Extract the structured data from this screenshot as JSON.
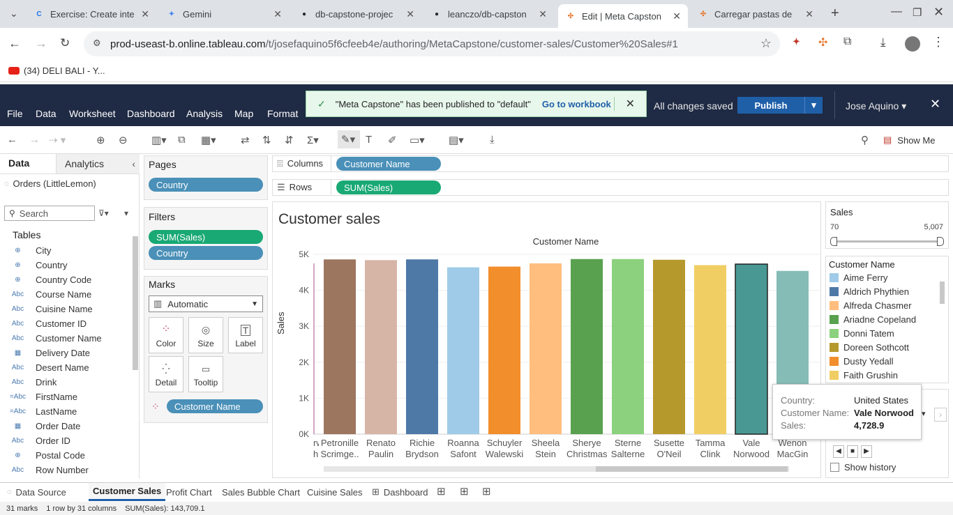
{
  "browser": {
    "tabs": [
      {
        "label": "Exercise: Create inte",
        "icon": "coursera-icon",
        "color": "#1a73e8",
        "glyph": "C"
      },
      {
        "label": "Gemini",
        "icon": "gemini-icon",
        "color": "#4285f4",
        "glyph": "✦"
      },
      {
        "label": "db-capstone-projec",
        "icon": "github-icon",
        "color": "#24292f",
        "glyph": "●"
      },
      {
        "label": "leanczo/db-capston",
        "icon": "github-icon",
        "color": "#24292f",
        "glyph": "●"
      },
      {
        "label": "Edit | Meta Capston",
        "icon": "tableau-icon",
        "color": "#e8762d",
        "glyph": "✣"
      },
      {
        "label": "Carregar pastas de",
        "icon": "tableau-icon",
        "color": "#e8762d",
        "glyph": "✣"
      }
    ],
    "url_host": "prod-useast-b.online.tableau.com",
    "url_path": "/t/josefaquino5f6cfeeb4e/authoring/MetaCapstone/customer-sales/Customer%20Sales#1",
    "bookmark": "(34) DELI BALI - Y..."
  },
  "tableau": {
    "menu": [
      "File",
      "Data",
      "Worksheet",
      "Dashboard",
      "Analysis",
      "Map",
      "Format"
    ],
    "toast": {
      "message": "\"Meta Capstone\" has been published to \"default\"",
      "link": "Go to workbook"
    },
    "saved": "All changes saved",
    "publish": "Publish",
    "user": "Jose Aquino",
    "show_me": "Show Me"
  },
  "datapane": {
    "tab_data": "Data",
    "tab_analytics": "Analytics",
    "source": "Orders (LittleLemon)",
    "search_placeholder": "Search",
    "tables_label": "Tables",
    "fields": [
      {
        "name": "City",
        "type": "⊕"
      },
      {
        "name": "Country",
        "type": "⊕"
      },
      {
        "name": "Country Code",
        "type": "⊕"
      },
      {
        "name": "Course Name",
        "type": "Abc"
      },
      {
        "name": "Cuisine Name",
        "type": "Abc"
      },
      {
        "name": "Customer ID",
        "type": "Abc"
      },
      {
        "name": "Customer Name",
        "type": "Abc"
      },
      {
        "name": "Delivery Date",
        "type": "▦"
      },
      {
        "name": "Desert Name",
        "type": "Abc"
      },
      {
        "name": "Drink",
        "type": "Abc"
      },
      {
        "name": "FirstName",
        "type": "=Abc"
      },
      {
        "name": "LastName",
        "type": "=Abc"
      },
      {
        "name": "Order Date",
        "type": "▦"
      },
      {
        "name": "Order ID",
        "type": "Abc"
      },
      {
        "name": "Postal Code",
        "type": "⊕"
      },
      {
        "name": "Row Number",
        "type": "Abc"
      }
    ]
  },
  "cards": {
    "pages_title": "Pages",
    "pages_pill": "Country",
    "filters_title": "Filters",
    "filters": [
      "SUM(Sales)",
      "Country"
    ],
    "marks_title": "Marks",
    "marks_type": "Automatic",
    "mark_buttons": [
      "Color",
      "Size",
      "Label",
      "Detail",
      "Tooltip"
    ],
    "marks_pill": "Customer Name"
  },
  "shelves": {
    "columns_label": "Columns",
    "columns_pill": "Customer Name",
    "rows_label": "Rows",
    "rows_pill": "SUM(Sales)"
  },
  "viz": {
    "title": "Customer sales",
    "x_header": "Customer Name",
    "y_label": "Sales",
    "tooltip": {
      "country_label": "Country:",
      "country": "United States",
      "name_label": "Customer Name:",
      "name": "Vale Norwood",
      "sales_label": "Sales:",
      "sales": "4,728.9"
    }
  },
  "chart_data": {
    "type": "bar",
    "title": "Customer sales",
    "xlabel": "Customer Name",
    "ylabel": "Sales",
    "ylim": [
      0,
      5000
    ],
    "yticks": [
      "0K",
      "1K",
      "2K",
      "3K",
      "4K",
      "5K"
    ],
    "categories": [
      {
        "label1": "rwin",
        "label2": "hno",
        "value": 4750,
        "color": "#d4a6c8"
      },
      {
        "label1": "Petronille",
        "label2": "Scrimge..",
        "value": 4860,
        "color": "#9d7660"
      },
      {
        "label1": "Renato",
        "label2": "Paulin",
        "value": 4840,
        "color": "#d7b5a6"
      },
      {
        "label1": "Richie",
        "label2": "Brydson",
        "value": 4860,
        "color": "#4e79a7"
      },
      {
        "label1": "Roanna",
        "label2": "Safont",
        "value": 4640,
        "color": "#a0cbe8"
      },
      {
        "label1": "Schuyler",
        "label2": "Walewski",
        "value": 4660,
        "color": "#f28e2b"
      },
      {
        "label1": "Sheela",
        "label2": "Stein",
        "value": 4750,
        "color": "#ffbe7d"
      },
      {
        "label1": "Sherye",
        "label2": "Christmas",
        "value": 4870,
        "color": "#59a14f"
      },
      {
        "label1": "Sterne",
        "label2": "Salterne",
        "value": 4870,
        "color": "#8cd17d"
      },
      {
        "label1": "Susette",
        "label2": "O'Neil",
        "value": 4850,
        "color": "#b6992d"
      },
      {
        "label1": "Tamma",
        "label2": "Clink",
        "value": 4700,
        "color": "#f1ce63"
      },
      {
        "label1": "Vale",
        "label2": "Norwood",
        "value": 4728.9,
        "color": "#499894"
      },
      {
        "label1": "Wenon",
        "label2": "MacGin",
        "value": 4540,
        "color": "#86bcb6"
      }
    ]
  },
  "filter_card": {
    "title": "Sales",
    "min": "70",
    "max": "5,007"
  },
  "legend": {
    "title": "Customer Name",
    "items": [
      {
        "name": "Aime Ferry",
        "color": "#a0cbe8"
      },
      {
        "name": "Aldrich Phythien",
        "color": "#4e79a7"
      },
      {
        "name": "Alfreda Chasmer",
        "color": "#ffbe7d"
      },
      {
        "name": "Ariadne Copeland",
        "color": "#59a14f"
      },
      {
        "name": "Donni Tatem",
        "color": "#8cd17d"
      },
      {
        "name": "Doreen Sothcott",
        "color": "#b6992d"
      },
      {
        "name": "Dusty Yedall",
        "color": "#f28e2b"
      },
      {
        "name": "Faith Grushin",
        "color": "#f1ce63"
      }
    ],
    "show_history": "Show history"
  },
  "sheets": [
    "Data Source",
    "Customer Sales",
    "Profit Chart",
    "Sales Bubble Chart",
    "Cuisine Sales",
    "Dashboard"
  ],
  "status": {
    "marks": "31 marks",
    "rows": "1 row by 31 columns",
    "sum": "SUM(Sales): 143,709.1"
  }
}
